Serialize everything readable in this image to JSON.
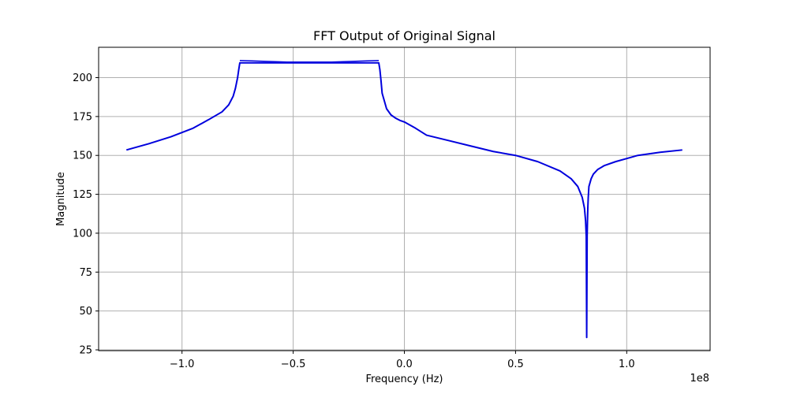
{
  "chart_data": {
    "type": "line",
    "title": "FFT Output of Original Signal",
    "xlabel": "Frequency (Hz)",
    "ylabel": "Magnitude",
    "x_offset_text": "1e8",
    "xlim": [
      -1.375,
      1.375
    ],
    "ylim": [
      24.5,
      219.5
    ],
    "x_scale_note": "x values in units of 1e8 Hz",
    "xticks": [
      -1.0,
      -0.5,
      0.0,
      0.5,
      1.0
    ],
    "xtick_labels": [
      "−1.0",
      "−0.5",
      "0.0",
      "0.5",
      "1.0"
    ],
    "yticks": [
      25,
      50,
      75,
      100,
      125,
      150,
      175,
      200
    ],
    "ytick_labels": [
      "25",
      "50",
      "75",
      "100",
      "125",
      "150",
      "175",
      "200"
    ],
    "grid": true,
    "line_color": "#0000dd",
    "series": [
      {
        "x": [
          -1.25,
          -1.15,
          -1.05,
          -0.95,
          -0.88,
          -0.82,
          -0.79,
          -0.77,
          -0.76,
          -0.75,
          -0.745,
          -0.74,
          -0.7,
          -0.6,
          -0.5,
          -0.4,
          -0.3,
          -0.2,
          -0.13,
          -0.115,
          -0.11,
          -0.105,
          -0.1,
          -0.09,
          -0.08,
          -0.06,
          -0.04,
          -0.02,
          0.0,
          0.05,
          0.1,
          0.2,
          0.3,
          0.4,
          0.5,
          0.6,
          0.7,
          0.75,
          0.78,
          0.8,
          0.81,
          0.815,
          0.818,
          0.82,
          0.822,
          0.8235,
          0.825,
          0.827,
          0.83,
          0.84,
          0.85,
          0.87,
          0.9,
          0.95,
          1.0,
          1.05,
          1.15,
          1.25
        ],
        "y": [
          153.5,
          157.5,
          162,
          167.5,
          173,
          178,
          182.5,
          188,
          193,
          200,
          205,
          209.5,
          209.5,
          209.5,
          209.5,
          209.5,
          209.5,
          209.5,
          209.5,
          209.5,
          205,
          198,
          190,
          185,
          180,
          176,
          174,
          172.5,
          171.5,
          167.5,
          163,
          159.5,
          156,
          152.5,
          150,
          146,
          140,
          135,
          130,
          123,
          116,
          108,
          98,
          33,
          98,
          108,
          116,
          123,
          130,
          135,
          138,
          141,
          143.5,
          146,
          148,
          150,
          152,
          153.5
        ]
      }
    ]
  }
}
